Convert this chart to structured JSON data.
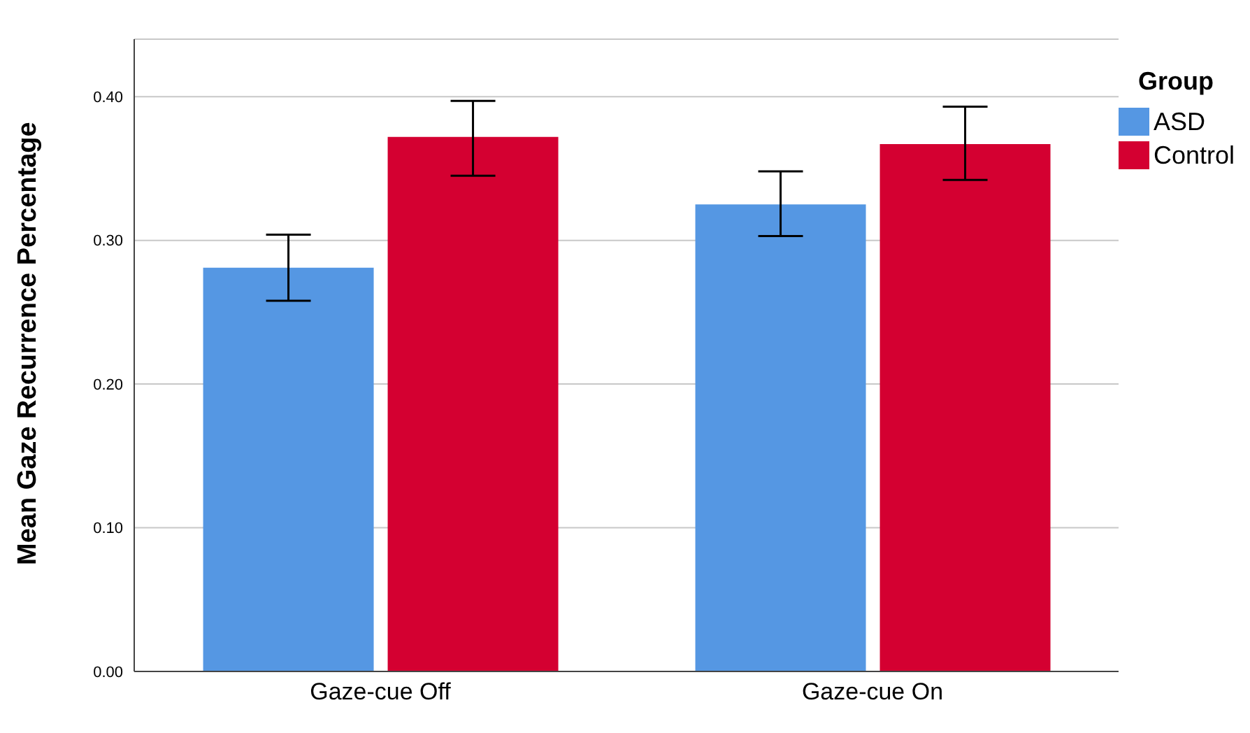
{
  "chart_data": {
    "type": "bar",
    "categories": [
      "Gaze-cue Off",
      "Gaze-cue On"
    ],
    "ylabel": "Mean Gaze Recurrence Percentage",
    "legend_title": "Group",
    "legend": "top right",
    "grid": "y",
    "ylim": [
      0,
      0.44
    ],
    "yticks": [
      {
        "value": 0,
        "label": "0.00"
      },
      {
        "value": 0.1,
        "label": "0.10"
      },
      {
        "value": 0.2,
        "label": "0.20"
      },
      {
        "value": 0.3,
        "label": "0.30"
      },
      {
        "value": 0.4,
        "label": "0.40"
      }
    ],
    "series": [
      {
        "name": "ASD",
        "color": "#5597e3",
        "values": [
          0.281,
          0.325
        ],
        "errors": [
          [
            0.258,
            0.304
          ],
          [
            0.303,
            0.348
          ]
        ]
      },
      {
        "name": "Control",
        "color": "#d40031",
        "values": [
          0.372,
          0.367
        ],
        "errors": [
          [
            0.345,
            0.397
          ],
          [
            0.342,
            0.393
          ]
        ]
      }
    ]
  }
}
